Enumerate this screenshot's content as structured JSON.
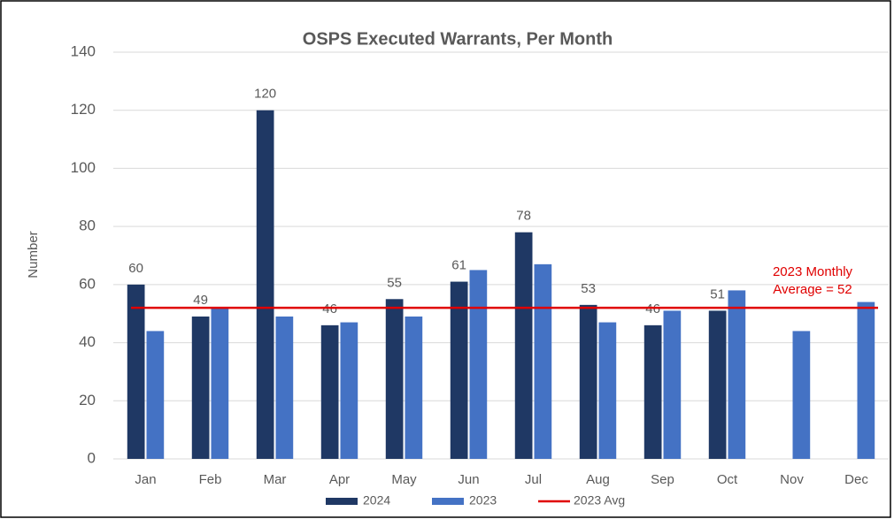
{
  "chart_data": {
    "type": "bar",
    "title": "OSPS Executed Warrants, Per Month",
    "y_label": "Number",
    "categories": [
      "Jan",
      "Feb",
      "Mar",
      "Apr",
      "May",
      "Jun",
      "Jul",
      "Aug",
      "Sep",
      "Oct",
      "Nov",
      "Dec"
    ],
    "series": [
      {
        "name": "2024",
        "color": "#1f3864",
        "values": [
          60,
          49,
          120,
          46,
          55,
          61,
          78,
          53,
          46,
          51,
          null,
          null
        ],
        "data_labels": true
      },
      {
        "name": "2023",
        "color": "#4472c4",
        "values": [
          44,
          52,
          49,
          47,
          49,
          65,
          67,
          47,
          51,
          58,
          44,
          54
        ],
        "data_labels": false
      }
    ],
    "average": {
      "name": "2023 Avg",
      "value": 52,
      "color": "#e00000",
      "annotation": [
        "2023 Monthly",
        "Average = 52"
      ]
    },
    "ylim": [
      0,
      140
    ],
    "yticks": [
      0,
      20,
      40,
      60,
      80,
      100,
      120,
      140
    ],
    "grid": true,
    "legend": "bottom"
  }
}
